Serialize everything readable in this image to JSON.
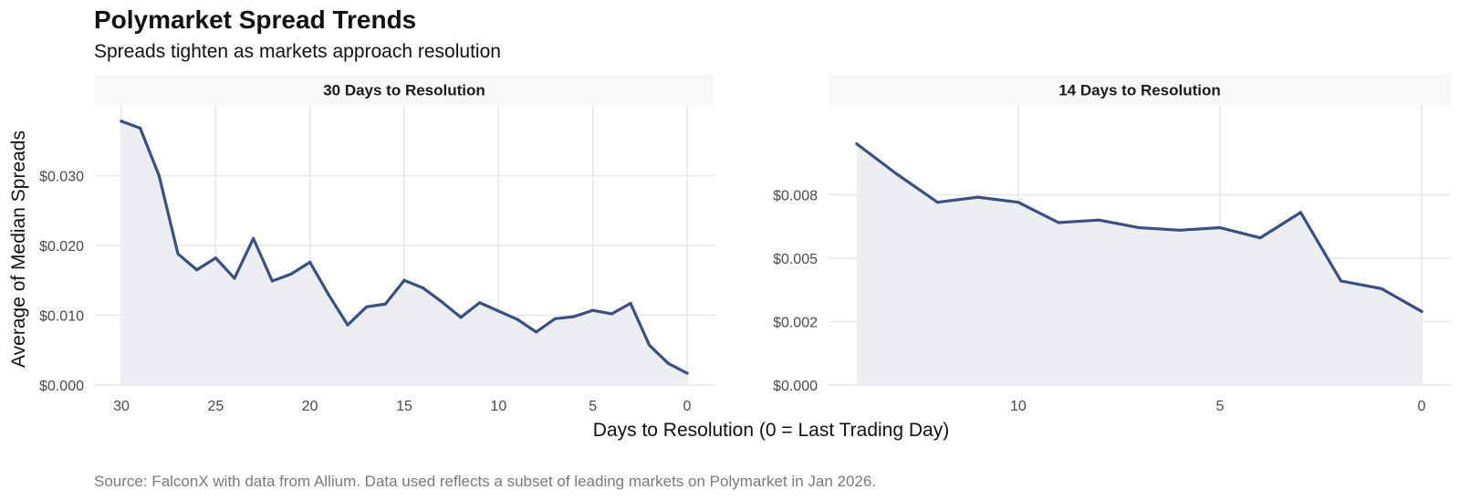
{
  "title": "Polymarket Spread Trends",
  "subtitle": "Spreads tighten as markets approach resolution",
  "xlabel": "Days to Resolution (0 = Last Trading Day)",
  "ylabel": "Average of Median Spreads",
  "caption": "Source: FalconX with data from Allium. Data used reflects a subset of leading markets on Polymarket in Jan 2026.",
  "colors": {
    "line": "#3a5083",
    "area": "#edeef2",
    "strip": "#f7f8fa",
    "grid": "#e6e7ea",
    "axis_text": "#4a4a4a"
  },
  "chart_data": [
    {
      "type": "area",
      "panel": "30 Days to Resolution",
      "x": [
        30,
        29,
        28,
        27,
        26,
        25,
        24,
        23,
        22,
        21,
        20,
        19,
        18,
        17,
        16,
        15,
        14,
        13,
        12,
        11,
        10,
        9,
        8,
        7,
        6,
        5,
        4,
        3,
        2,
        1,
        0
      ],
      "y": [
        0.0378,
        0.0368,
        0.03,
        0.0188,
        0.0165,
        0.0182,
        0.0153,
        0.021,
        0.0149,
        0.0159,
        0.0176,
        0.0129,
        0.0086,
        0.0112,
        0.0116,
        0.015,
        0.0139,
        0.0119,
        0.0097,
        0.0118,
        0.0106,
        0.0094,
        0.0076,
        0.0095,
        0.0098,
        0.0107,
        0.0102,
        0.0117,
        0.0057,
        0.0031,
        0.0017
      ],
      "xlim": [
        30,
        0
      ],
      "ylim": [
        0,
        0.04
      ],
      "x_ticks": [
        30,
        25,
        20,
        15,
        10,
        5,
        0
      ],
      "x_tick_labels": [
        "30",
        "25",
        "20",
        "15",
        "10",
        "5",
        "0"
      ],
      "y_ticks": [
        0,
        0.01,
        0.02,
        0.03
      ],
      "y_tick_labels": [
        "$0.000",
        "$0.010",
        "$0.020",
        "$0.030"
      ]
    },
    {
      "type": "area",
      "panel": "14 Days to Resolution",
      "x": [
        14,
        13,
        12,
        11,
        10,
        9,
        8,
        7,
        6,
        5,
        4,
        3,
        2,
        1,
        0
      ],
      "y": [
        0.0095,
        0.0083,
        0.0072,
        0.0074,
        0.0072,
        0.0064,
        0.0065,
        0.0062,
        0.0061,
        0.0062,
        0.0058,
        0.0068,
        0.0041,
        0.0038,
        0.0029
      ],
      "xlim": [
        14,
        0
      ],
      "ylim": [
        0,
        0.011
      ],
      "x_ticks": [
        10,
        5,
        0
      ],
      "x_tick_labels": [
        "10",
        "5",
        "0"
      ],
      "y_ticks": [
        0,
        0.0025,
        0.005,
        0.0075
      ],
      "y_tick_labels": [
        "$0.000",
        "$0.002",
        "$0.005",
        "$0.008"
      ]
    }
  ]
}
